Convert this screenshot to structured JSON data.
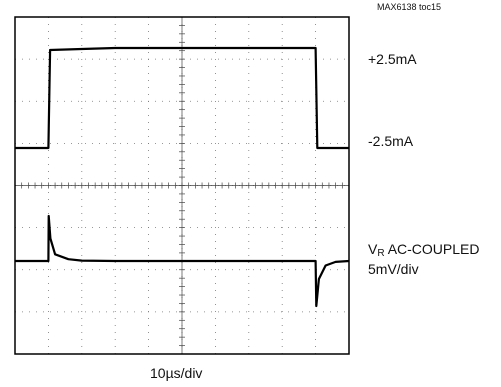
{
  "chart_data": {
    "type": "line",
    "title": "",
    "figure_tag": "MAX6138 toc15",
    "xlabel": "10µs/div",
    "grid": true,
    "divisions": {
      "x": 10,
      "y": 8
    },
    "trace_labels": {
      "upper_high": "+2.5mA",
      "upper_low": "-2.5mA",
      "lower_v": "V",
      "lower_sub": "R",
      "lower_rest": " AC-COUPLED",
      "lower_scale": "5mV/div"
    },
    "series": [
      {
        "x": [
          0,
          10,
          10.5,
          20,
          30,
          40,
          50,
          60,
          70,
          80,
          90,
          90.5,
          100
        ],
        "values": [
          -2.5,
          -2.5,
          2.4,
          2.45,
          2.5,
          2.5,
          2.5,
          2.5,
          2.5,
          2.5,
          2.5,
          -2.5,
          -2.5
        ]
      },
      {
        "x": [
          0,
          10,
          10.1,
          10.6,
          12,
          16,
          20,
          30,
          60,
          90,
          90.2,
          91,
          93,
          96,
          100
        ],
        "values": [
          0,
          0,
          10,
          5,
          1.5,
          0.4,
          0.1,
          0,
          0,
          0,
          -10,
          -4,
          -1,
          -0.2,
          0
        ]
      }
    ]
  }
}
